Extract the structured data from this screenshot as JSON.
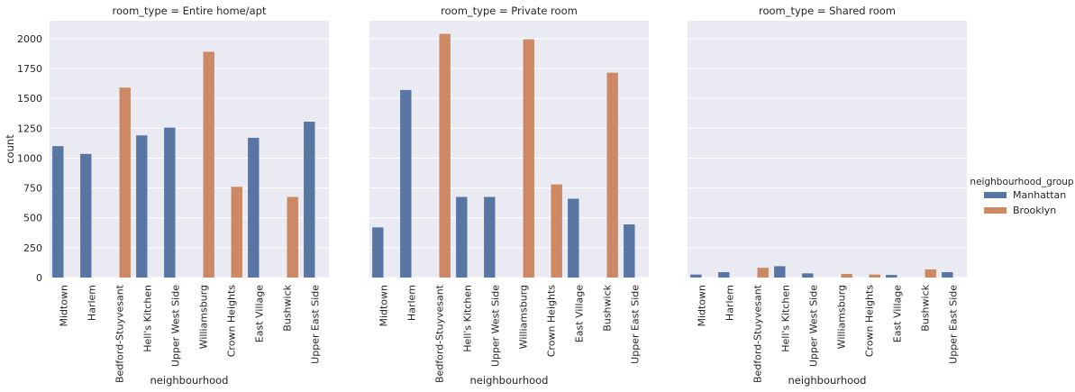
{
  "chart_data": {
    "type": "bar",
    "ylabel": "count",
    "xlabel": "neighbourhood",
    "ylim": [
      0,
      2150
    ],
    "yticks": [
      0,
      250,
      500,
      750,
      1000,
      1250,
      1500,
      1750,
      2000
    ],
    "grid": true,
    "legend": {
      "title": "neighbourhood_group",
      "placement": "right",
      "entries": [
        {
          "name": "Manhattan",
          "color": "#5875a4"
        },
        {
          "name": "Brooklyn",
          "color": "#cc8963"
        }
      ]
    },
    "categories": [
      "Midtown",
      "Harlem",
      "Bedford-Stuyvesant",
      "Hell's Kitchen",
      "Upper West Side",
      "Williamsburg",
      "Crown Heights",
      "East Village",
      "Bushwick",
      "Upper East Side"
    ],
    "category_group": [
      "Manhattan",
      "Manhattan",
      "Brooklyn",
      "Manhattan",
      "Manhattan",
      "Brooklyn",
      "Brooklyn",
      "Manhattan",
      "Brooklyn",
      "Manhattan"
    ],
    "facets": [
      {
        "title": "room_type = Entire home/apt",
        "series": [
          {
            "name": "Manhattan",
            "values": [
              1100,
              1035,
              null,
              1190,
              1255,
              null,
              null,
              1170,
              null,
              1305
            ]
          },
          {
            "name": "Brooklyn",
            "values": [
              null,
              null,
              1590,
              null,
              null,
              1890,
              760,
              null,
              675,
              null
            ]
          }
        ]
      },
      {
        "title": "room_type = Private room",
        "series": [
          {
            "name": "Manhattan",
            "values": [
              420,
              1570,
              null,
              675,
              675,
              null,
              null,
              660,
              null,
              445
            ]
          },
          {
            "name": "Brooklyn",
            "values": [
              null,
              null,
              2040,
              null,
              null,
              1995,
              780,
              null,
              1715,
              null
            ]
          }
        ]
      },
      {
        "title": "room_type = Shared room",
        "series": [
          {
            "name": "Manhattan",
            "values": [
              25,
              45,
              null,
              95,
              35,
              null,
              null,
              22,
              null,
              45
            ]
          },
          {
            "name": "Brooklyn",
            "values": [
              null,
              null,
              82,
              null,
              null,
              30,
              25,
              null,
              68,
              null
            ]
          }
        ]
      }
    ]
  }
}
